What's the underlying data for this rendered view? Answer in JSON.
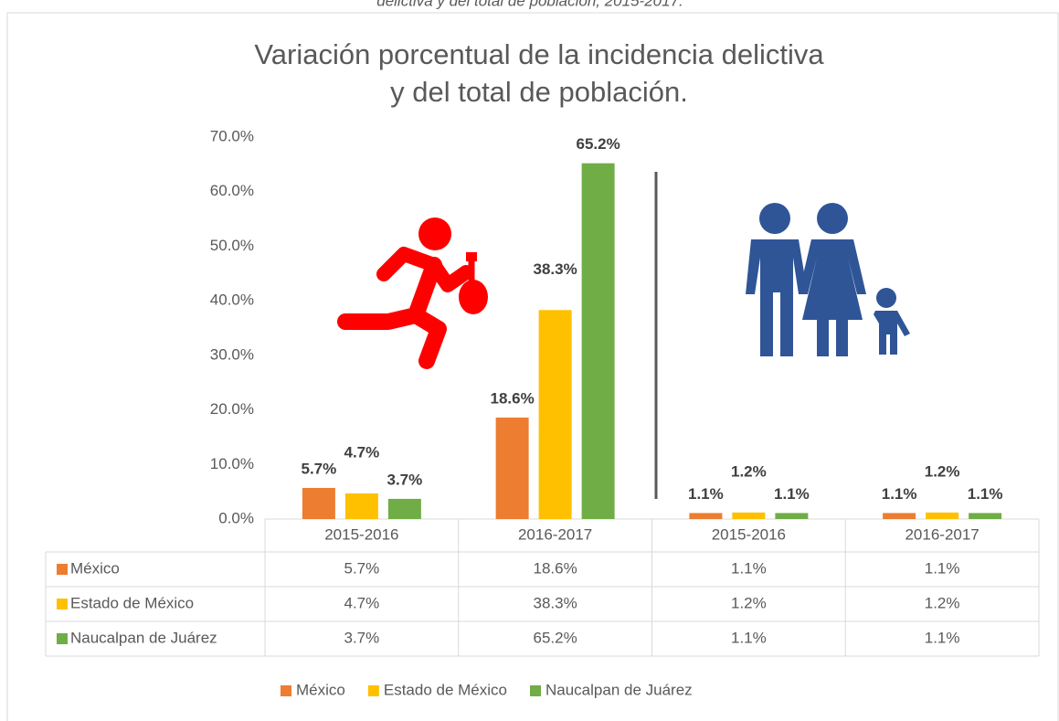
{
  "caption": "delictiva y del total de población, 2015-2017.",
  "chart_data": {
    "type": "bar",
    "title": [
      "Variación porcentual de la incidencia delictiva",
      "y del total de población."
    ],
    "categories": [
      "2015-2016",
      "2016-2017",
      "2015-2016",
      "2016-2017"
    ],
    "series": [
      {
        "name": "México",
        "color": "#ED7D31",
        "values": [
          5.7,
          18.6,
          1.1,
          1.1
        ],
        "value_labels": [
          "5.7%",
          "18.6%",
          "1.1%",
          "1.1%"
        ]
      },
      {
        "name": "Estado de México",
        "color": "#FFC000",
        "values": [
          4.7,
          38.3,
          1.2,
          1.2
        ],
        "value_labels": [
          "4.7%",
          "38.3%",
          "1.2%",
          "1.2%"
        ]
      },
      {
        "name": "Naucalpan de Juárez",
        "color": "#70AD47",
        "values": [
          3.7,
          65.2,
          1.1,
          1.1
        ],
        "value_labels": [
          "3.7%",
          "65.2%",
          "1.1%",
          "1.1%"
        ]
      }
    ],
    "ylim": [
      0,
      70
    ],
    "yticks": [
      {
        "value": 0,
        "label": "0.0%"
      },
      {
        "value": 10,
        "label": "10.0%"
      },
      {
        "value": 20,
        "label": "20.0%"
      },
      {
        "value": 30,
        "label": "30.0%"
      },
      {
        "value": 40,
        "label": "40.0%"
      },
      {
        "value": 50,
        "label": "50.0%"
      },
      {
        "value": 60,
        "label": "60.0%"
      },
      {
        "value": 70,
        "label": "70.0%"
      }
    ],
    "grid": false,
    "legend": "bottom"
  }
}
